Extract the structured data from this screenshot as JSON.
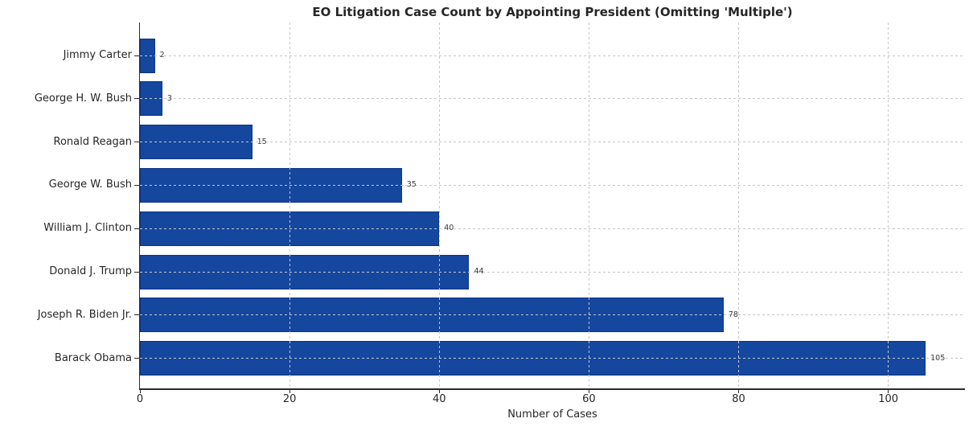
{
  "chart_data": {
    "type": "bar",
    "orientation": "horizontal",
    "title": "EO Litigation Case Count by Appointing President (Omitting 'Multiple')",
    "xlabel": "Number of Cases",
    "ylabel": "",
    "categories": [
      "Jimmy Carter",
      "George H. W. Bush",
      "Ronald Reagan",
      "George W. Bush",
      "William J. Clinton",
      "Donald J. Trump",
      "Joseph R. Biden Jr.",
      "Barack Obama"
    ],
    "values": [
      2,
      3,
      15,
      35,
      40,
      44,
      78,
      105
    ],
    "value_labels": [
      "2",
      "3",
      "15",
      "35",
      "40",
      "44",
      "78",
      "105"
    ],
    "xlim": [
      0,
      110.25
    ],
    "xticks": [
      0,
      20,
      40,
      60,
      80,
      100
    ],
    "grid": true,
    "grid_style": "dashed",
    "legend": "none",
    "colors": {
      "bar_fill": "#15479F",
      "bar_edge": "#0D3480",
      "grid": "#C6C6C6",
      "spine": "#2B2B2B",
      "text": "#262626",
      "value_label": "#3D3D3D",
      "background": "#FFFFFF"
    }
  }
}
